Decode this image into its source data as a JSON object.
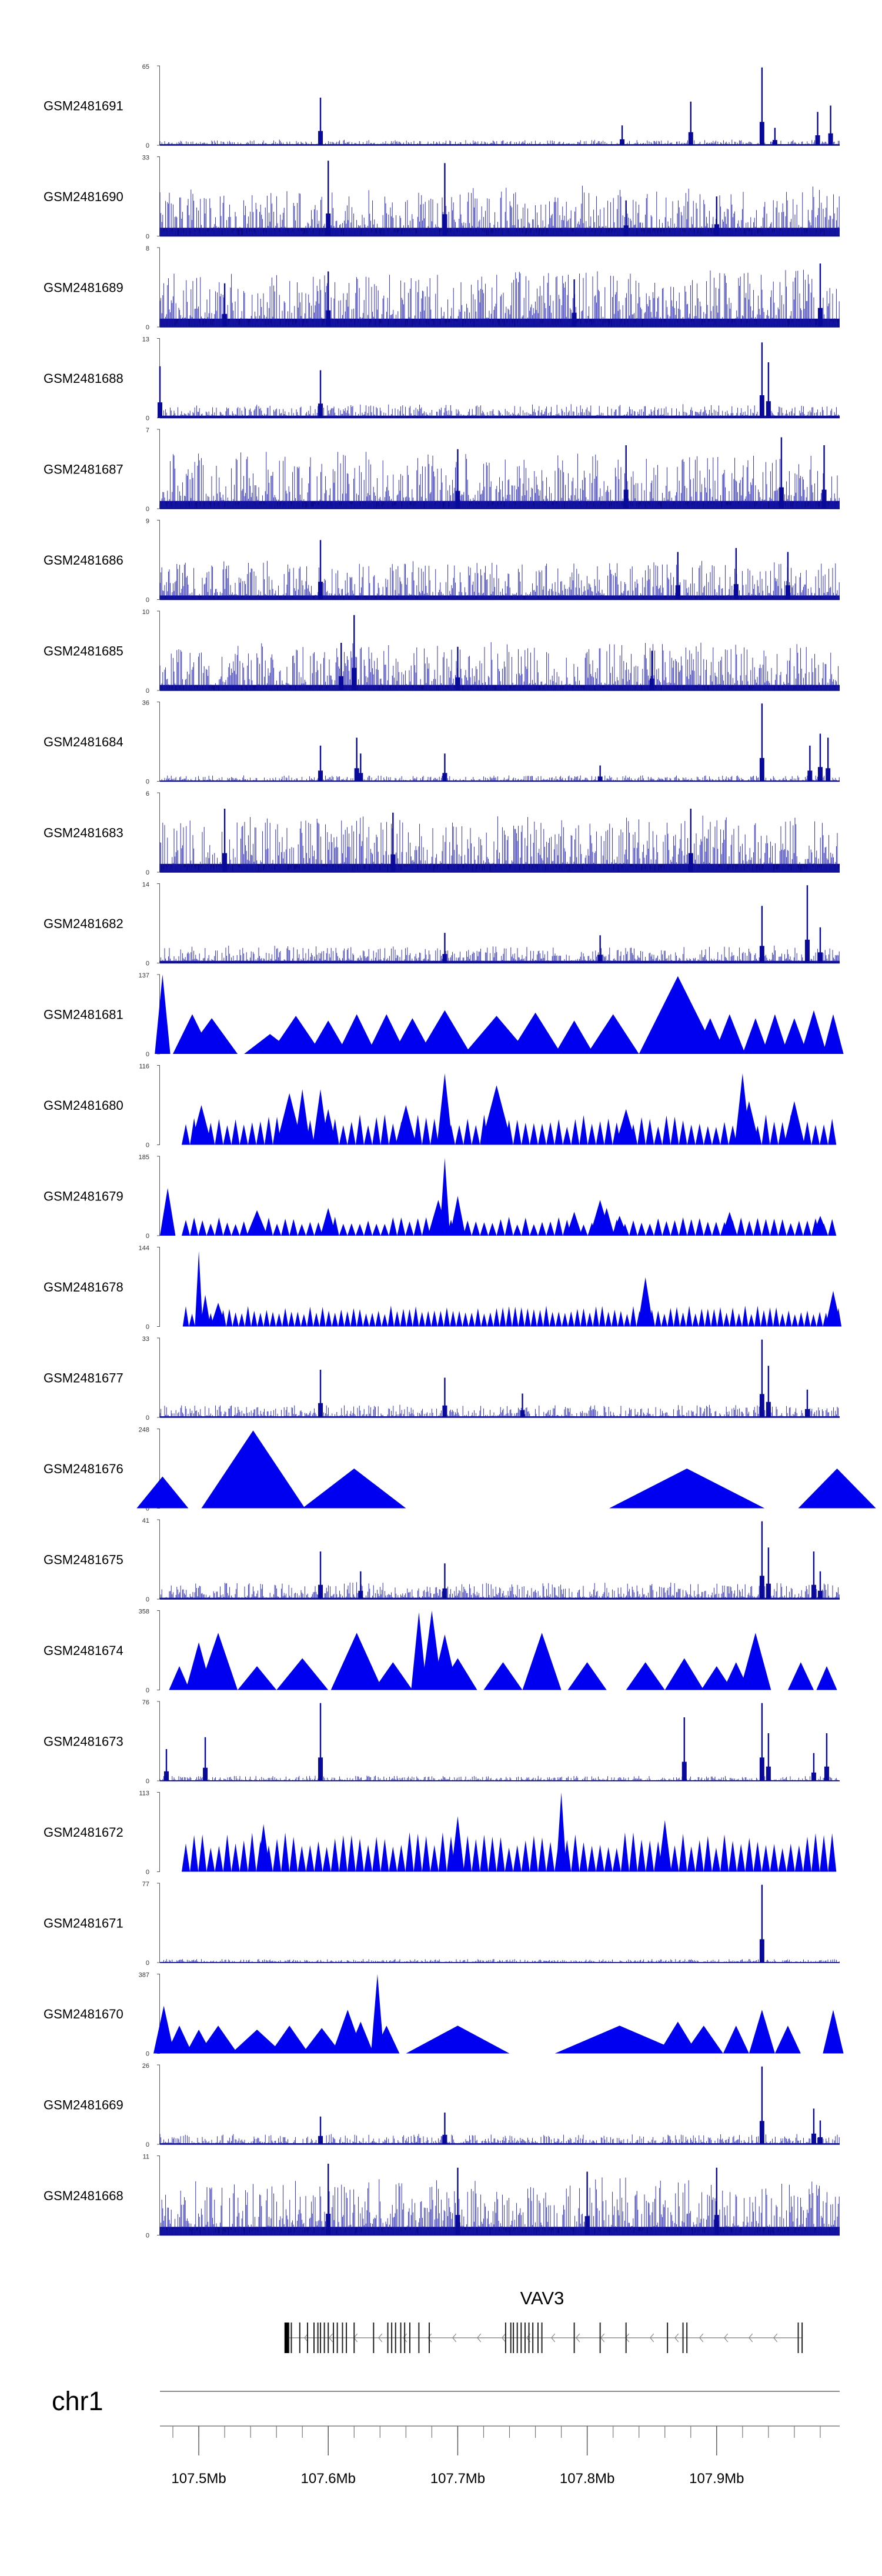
{
  "chart_data": {
    "type": "genome-browser-coverage",
    "chromosome": "chr1",
    "x_range_mb": [
      107.47,
      107.995
    ],
    "x_ticks": [
      107.5,
      107.6,
      107.7,
      107.8,
      107.9
    ],
    "x_tick_labels": [
      "107.5Mb",
      "107.6Mb",
      "107.7Mb",
      "107.8Mb",
      "107.9Mb"
    ],
    "gene": {
      "name": "VAV3",
      "start_mb": 107.568,
      "end_mb": 107.966,
      "strand": "-",
      "exon_positions_mb": [
        107.568,
        107.5695,
        107.5715,
        107.578,
        107.584,
        107.589,
        107.592,
        107.594,
        107.597,
        107.6,
        107.604,
        107.607,
        107.611,
        107.614,
        107.62,
        107.635,
        107.646,
        107.649,
        107.652,
        107.656,
        107.659,
        107.663,
        107.67,
        107.678,
        107.737,
        107.741,
        107.743,
        107.746,
        107.749,
        107.752,
        107.755,
        107.758,
        107.762,
        107.765,
        107.79,
        107.81,
        107.83,
        107.862,
        107.874,
        107.877,
        107.963,
        107.966
      ]
    },
    "tracks": [
      {
        "name": "GSM2481691",
        "ymax": "65",
        "kind": "dense",
        "baseline": 0.04,
        "noise": 0.06,
        "seed": 11,
        "peaks": [
          [
            107.594,
            0.6
          ],
          [
            107.827,
            0.25
          ],
          [
            107.88,
            0.55
          ],
          [
            107.935,
            0.98
          ],
          [
            107.945,
            0.22
          ],
          [
            107.978,
            0.42
          ],
          [
            107.988,
            0.5
          ]
        ]
      },
      {
        "name": "GSM2481690",
        "ymax": "33",
        "kind": "dense",
        "baseline": 0.3,
        "noise": 0.55,
        "seed": 23,
        "peaks": [
          [
            107.6,
            0.95
          ],
          [
            107.69,
            0.92
          ],
          [
            107.83,
            0.45
          ],
          [
            107.9,
            0.5
          ]
        ]
      },
      {
        "name": "GSM2481689",
        "ymax": "8",
        "kind": "dense",
        "baseline": 0.3,
        "noise": 0.65,
        "seed": 37,
        "peaks": [
          [
            107.52,
            0.55
          ],
          [
            107.6,
            0.7
          ],
          [
            107.79,
            0.6
          ],
          [
            107.98,
            0.8
          ]
        ]
      },
      {
        "name": "GSM2481688",
        "ymax": "13",
        "kind": "dense",
        "baseline": 0.08,
        "noise": 0.15,
        "seed": 41,
        "peaks": [
          [
            107.47,
            0.65
          ],
          [
            107.594,
            0.6
          ],
          [
            107.935,
            0.95
          ],
          [
            107.94,
            0.7
          ]
        ]
      },
      {
        "name": "GSM2481687",
        "ymax": "7",
        "kind": "dense",
        "baseline": 0.28,
        "noise": 0.65,
        "seed": 53,
        "peaks": [
          [
            107.7,
            0.75
          ],
          [
            107.83,
            0.8
          ],
          [
            107.95,
            0.9
          ],
          [
            107.983,
            0.8
          ]
        ]
      },
      {
        "name": "GSM2481686",
        "ymax": "9",
        "kind": "dense",
        "baseline": 0.15,
        "noise": 0.45,
        "seed": 61,
        "peaks": [
          [
            107.594,
            0.75
          ],
          [
            107.87,
            0.6
          ],
          [
            107.915,
            0.65
          ],
          [
            107.955,
            0.6
          ]
        ]
      },
      {
        "name": "GSM2481685",
        "ymax": "10",
        "kind": "dense",
        "baseline": 0.2,
        "noise": 0.55,
        "seed": 67,
        "peaks": [
          [
            107.62,
            0.95
          ],
          [
            107.61,
            0.6
          ],
          [
            107.7,
            0.55
          ],
          [
            107.85,
            0.5
          ]
        ]
      },
      {
        "name": "GSM2481684",
        "ymax": "36",
        "kind": "dense",
        "baseline": 0.03,
        "noise": 0.07,
        "seed": 71,
        "peaks": [
          [
            107.594,
            0.45
          ],
          [
            107.622,
            0.55
          ],
          [
            107.625,
            0.35
          ],
          [
            107.69,
            0.35
          ],
          [
            107.81,
            0.2
          ],
          [
            107.935,
            0.98
          ],
          [
            107.972,
            0.45
          ],
          [
            107.98,
            0.6
          ],
          [
            107.986,
            0.55
          ]
        ]
      },
      {
        "name": "GSM2481683",
        "ymax": "6",
        "kind": "dense",
        "baseline": 0.3,
        "noise": 0.65,
        "seed": 79,
        "peaks": [
          [
            107.52,
            0.8
          ],
          [
            107.65,
            0.75
          ],
          [
            107.88,
            0.8
          ]
        ]
      },
      {
        "name": "GSM2481682",
        "ymax": "14",
        "kind": "dense",
        "baseline": 0.08,
        "noise": 0.2,
        "seed": 83,
        "peaks": [
          [
            107.69,
            0.38
          ],
          [
            107.81,
            0.35
          ],
          [
            107.935,
            0.72
          ],
          [
            107.97,
            0.98
          ],
          [
            107.98,
            0.45
          ]
        ]
      },
      {
        "name": "GSM2481681",
        "ymax": "137",
        "kind": "spiky",
        "seed": 5,
        "spikes": [
          [
            107.472,
            1.0,
            0.006
          ],
          [
            107.495,
            0.5,
            0.015
          ],
          [
            107.51,
            0.45,
            0.02
          ],
          [
            107.555,
            0.25,
            0.02
          ],
          [
            107.575,
            0.48,
            0.02
          ],
          [
            107.6,
            0.42,
            0.015
          ],
          [
            107.622,
            0.5,
            0.015
          ],
          [
            107.645,
            0.5,
            0.015
          ],
          [
            107.665,
            0.45,
            0.015
          ],
          [
            107.69,
            0.55,
            0.02
          ],
          [
            107.73,
            0.48,
            0.025
          ],
          [
            107.76,
            0.52,
            0.02
          ],
          [
            107.79,
            0.42,
            0.015
          ],
          [
            107.82,
            0.5,
            0.02
          ],
          [
            107.87,
            0.98,
            0.03
          ],
          [
            107.895,
            0.45,
            0.012
          ],
          [
            107.91,
            0.5,
            0.012
          ],
          [
            107.93,
            0.45,
            0.01
          ],
          [
            107.945,
            0.5,
            0.01
          ],
          [
            107.96,
            0.45,
            0.01
          ],
          [
            107.975,
            0.55,
            0.01
          ],
          [
            107.99,
            0.5,
            0.008
          ]
        ]
      },
      {
        "name": "GSM2481680",
        "ymax": "116",
        "kind": "spiky",
        "seed": 9,
        "spikes": [
          [
            107.502,
            0.5,
            0.008
          ],
          [
            107.57,
            0.65,
            0.01
          ],
          [
            107.58,
            0.7,
            0.006
          ],
          [
            107.594,
            0.7,
            0.006
          ],
          [
            107.6,
            0.45,
            0.006
          ],
          [
            107.66,
            0.5,
            0.008
          ],
          [
            107.69,
            0.9,
            0.006
          ],
          [
            107.73,
            0.75,
            0.012
          ],
          [
            107.83,
            0.45,
            0.008
          ],
          [
            107.92,
            0.9,
            0.006
          ],
          [
            107.925,
            0.55,
            0.008
          ],
          [
            107.96,
            0.55,
            0.008
          ]
        ],
        "floor": [
          0.32,
          0.004
        ]
      },
      {
        "name": "GSM2481679",
        "ymax": "185",
        "kind": "spiky",
        "seed": 13,
        "spikes": [
          [
            107.476,
            0.6,
            0.006
          ],
          [
            107.545,
            0.32,
            0.008
          ],
          [
            107.6,
            0.35,
            0.006
          ],
          [
            107.69,
            0.98,
            0.004
          ],
          [
            107.685,
            0.45,
            0.008
          ],
          [
            107.7,
            0.5,
            0.006
          ],
          [
            107.79,
            0.3,
            0.006
          ],
          [
            107.81,
            0.45,
            0.008
          ],
          [
            107.815,
            0.35,
            0.006
          ],
          [
            107.825,
            0.25,
            0.006
          ],
          [
            107.91,
            0.3,
            0.006
          ],
          [
            107.98,
            0.25,
            0.006
          ]
        ],
        "floor": [
          0.2,
          0.004
        ]
      },
      {
        "name": "GSM2481678",
        "ymax": "144",
        "kind": "spiky",
        "seed": 17,
        "spikes": [
          [
            107.5,
            0.95,
            0.003
          ],
          [
            107.505,
            0.4,
            0.004
          ],
          [
            107.515,
            0.3,
            0.006
          ],
          [
            107.845,
            0.62,
            0.006
          ],
          [
            107.99,
            0.45,
            0.006
          ]
        ],
        "floor": [
          0.22,
          0.003
        ]
      },
      {
        "name": "GSM2481677",
        "ymax": "33",
        "kind": "dense",
        "baseline": 0.04,
        "noise": 0.15,
        "seed": 19,
        "peaks": [
          [
            107.594,
            0.6
          ],
          [
            107.69,
            0.5
          ],
          [
            107.75,
            0.3
          ],
          [
            107.935,
            0.98
          ],
          [
            107.94,
            0.65
          ],
          [
            107.97,
            0.35
          ]
        ]
      },
      {
        "name": "GSM2481676",
        "ymax": "248",
        "kind": "spiky",
        "seed": 21,
        "spikes": [
          [
            107.472,
            0.4,
            0.02
          ],
          [
            107.5,
            0.0,
            0.0
          ],
          [
            107.545,
            0.6,
            0.02
          ],
          [
            107.542,
            0.98,
            0.04
          ],
          [
            107.62,
            0.5,
            0.04
          ],
          [
            107.75,
            0.0,
            0.0
          ],
          [
            107.877,
            0.5,
            0.06
          ],
          [
            107.88,
            0.4,
            0.003
          ],
          [
            107.993,
            0.5,
            0.03
          ]
        ],
        "custom": true
      },
      {
        "name": "GSM2481675",
        "ymax": "41",
        "kind": "dense",
        "baseline": 0.05,
        "noise": 0.2,
        "seed": 27,
        "peaks": [
          [
            107.594,
            0.6
          ],
          [
            107.625,
            0.35
          ],
          [
            107.69,
            0.45
          ],
          [
            107.935,
            0.98
          ],
          [
            107.94,
            0.65
          ],
          [
            107.975,
            0.6
          ],
          [
            107.98,
            0.35
          ]
        ]
      },
      {
        "name": "GSM2481674",
        "ymax": "358",
        "kind": "spiky",
        "seed": 29,
        "spikes": [
          [
            107.485,
            0.3,
            0.008
          ],
          [
            107.5,
            0.6,
            0.01
          ],
          [
            107.515,
            0.72,
            0.015
          ],
          [
            107.545,
            0.3,
            0.015
          ],
          [
            107.58,
            0.4,
            0.02
          ],
          [
            107.622,
            0.72,
            0.02
          ],
          [
            107.65,
            0.35,
            0.015
          ],
          [
            107.67,
            0.98,
            0.006
          ],
          [
            107.68,
            1.0,
            0.008
          ],
          [
            107.69,
            0.7,
            0.01
          ],
          [
            107.7,
            0.4,
            0.015
          ],
          [
            107.735,
            0.35,
            0.015
          ],
          [
            107.765,
            0.72,
            0.015
          ],
          [
            107.8,
            0.35,
            0.015
          ],
          [
            107.845,
            0.35,
            0.015
          ],
          [
            107.875,
            0.4,
            0.015
          ],
          [
            107.9,
            0.3,
            0.012
          ],
          [
            107.915,
            0.35,
            0.01
          ],
          [
            107.93,
            0.72,
            0.012
          ],
          [
            107.965,
            0.35,
            0.01
          ],
          [
            107.985,
            0.3,
            0.008
          ]
        ]
      },
      {
        "name": "GSM2481673",
        "ymax": "76",
        "kind": "dense",
        "baseline": 0.02,
        "noise": 0.06,
        "seed": 31,
        "peaks": [
          [
            107.475,
            0.4
          ],
          [
            107.505,
            0.55
          ],
          [
            107.594,
            0.98
          ],
          [
            107.875,
            0.8
          ],
          [
            107.935,
            0.98
          ],
          [
            107.94,
            0.6
          ],
          [
            107.975,
            0.35
          ],
          [
            107.985,
            0.6
          ]
        ]
      },
      {
        "name": "GSM2481672",
        "ymax": "113",
        "kind": "spiky",
        "seed": 33,
        "spikes": [
          [
            107.78,
            1.0,
            0.004
          ],
          [
            107.55,
            0.6,
            0.005
          ],
          [
            107.7,
            0.7,
            0.005
          ],
          [
            107.86,
            0.65,
            0.005
          ]
        ],
        "floor": [
          0.42,
          0.004
        ]
      },
      {
        "name": "GSM2481671",
        "ymax": "77",
        "kind": "dense",
        "baseline": 0.02,
        "noise": 0.04,
        "seed": 39,
        "peaks": [
          [
            107.935,
            0.98
          ]
        ]
      },
      {
        "name": "GSM2481670",
        "ymax": "387",
        "kind": "spiky",
        "seed": 43,
        "spikes": [
          [
            107.473,
            0.6,
            0.008
          ],
          [
            107.485,
            0.35,
            0.01
          ],
          [
            107.5,
            0.3,
            0.01
          ],
          [
            107.515,
            0.35,
            0.015
          ],
          [
            107.545,
            0.3,
            0.02
          ],
          [
            107.57,
            0.35,
            0.015
          ],
          [
            107.595,
            0.32,
            0.015
          ],
          [
            107.615,
            0.55,
            0.012
          ],
          [
            107.625,
            0.4,
            0.01
          ],
          [
            107.638,
            1.0,
            0.005
          ],
          [
            107.645,
            0.35,
            0.01
          ],
          [
            107.7,
            0.35,
            0.04
          ],
          [
            107.75,
            0.0,
            0.0
          ],
          [
            107.825,
            0.35,
            0.05
          ],
          [
            107.87,
            0.4,
            0.015
          ],
          [
            107.89,
            0.35,
            0.015
          ],
          [
            107.915,
            0.35,
            0.01
          ],
          [
            107.935,
            0.55,
            0.01
          ],
          [
            107.955,
            0.35,
            0.01
          ],
          [
            107.99,
            0.55,
            0.008
          ]
        ]
      },
      {
        "name": "GSM2481669",
        "ymax": "26",
        "kind": "dense",
        "baseline": 0.04,
        "noise": 0.12,
        "seed": 47,
        "peaks": [
          [
            107.594,
            0.35
          ],
          [
            107.69,
            0.4
          ],
          [
            107.935,
            0.98
          ],
          [
            107.975,
            0.45
          ],
          [
            107.98,
            0.3
          ]
        ]
      },
      {
        "name": "GSM2481668",
        "ymax": "11",
        "kind": "dense",
        "baseline": 0.3,
        "noise": 0.65,
        "seed": 59,
        "peaks": [
          [
            107.6,
            0.9
          ],
          [
            107.7,
            0.85
          ],
          [
            107.8,
            0.8
          ],
          [
            107.9,
            0.85
          ]
        ]
      }
    ]
  }
}
